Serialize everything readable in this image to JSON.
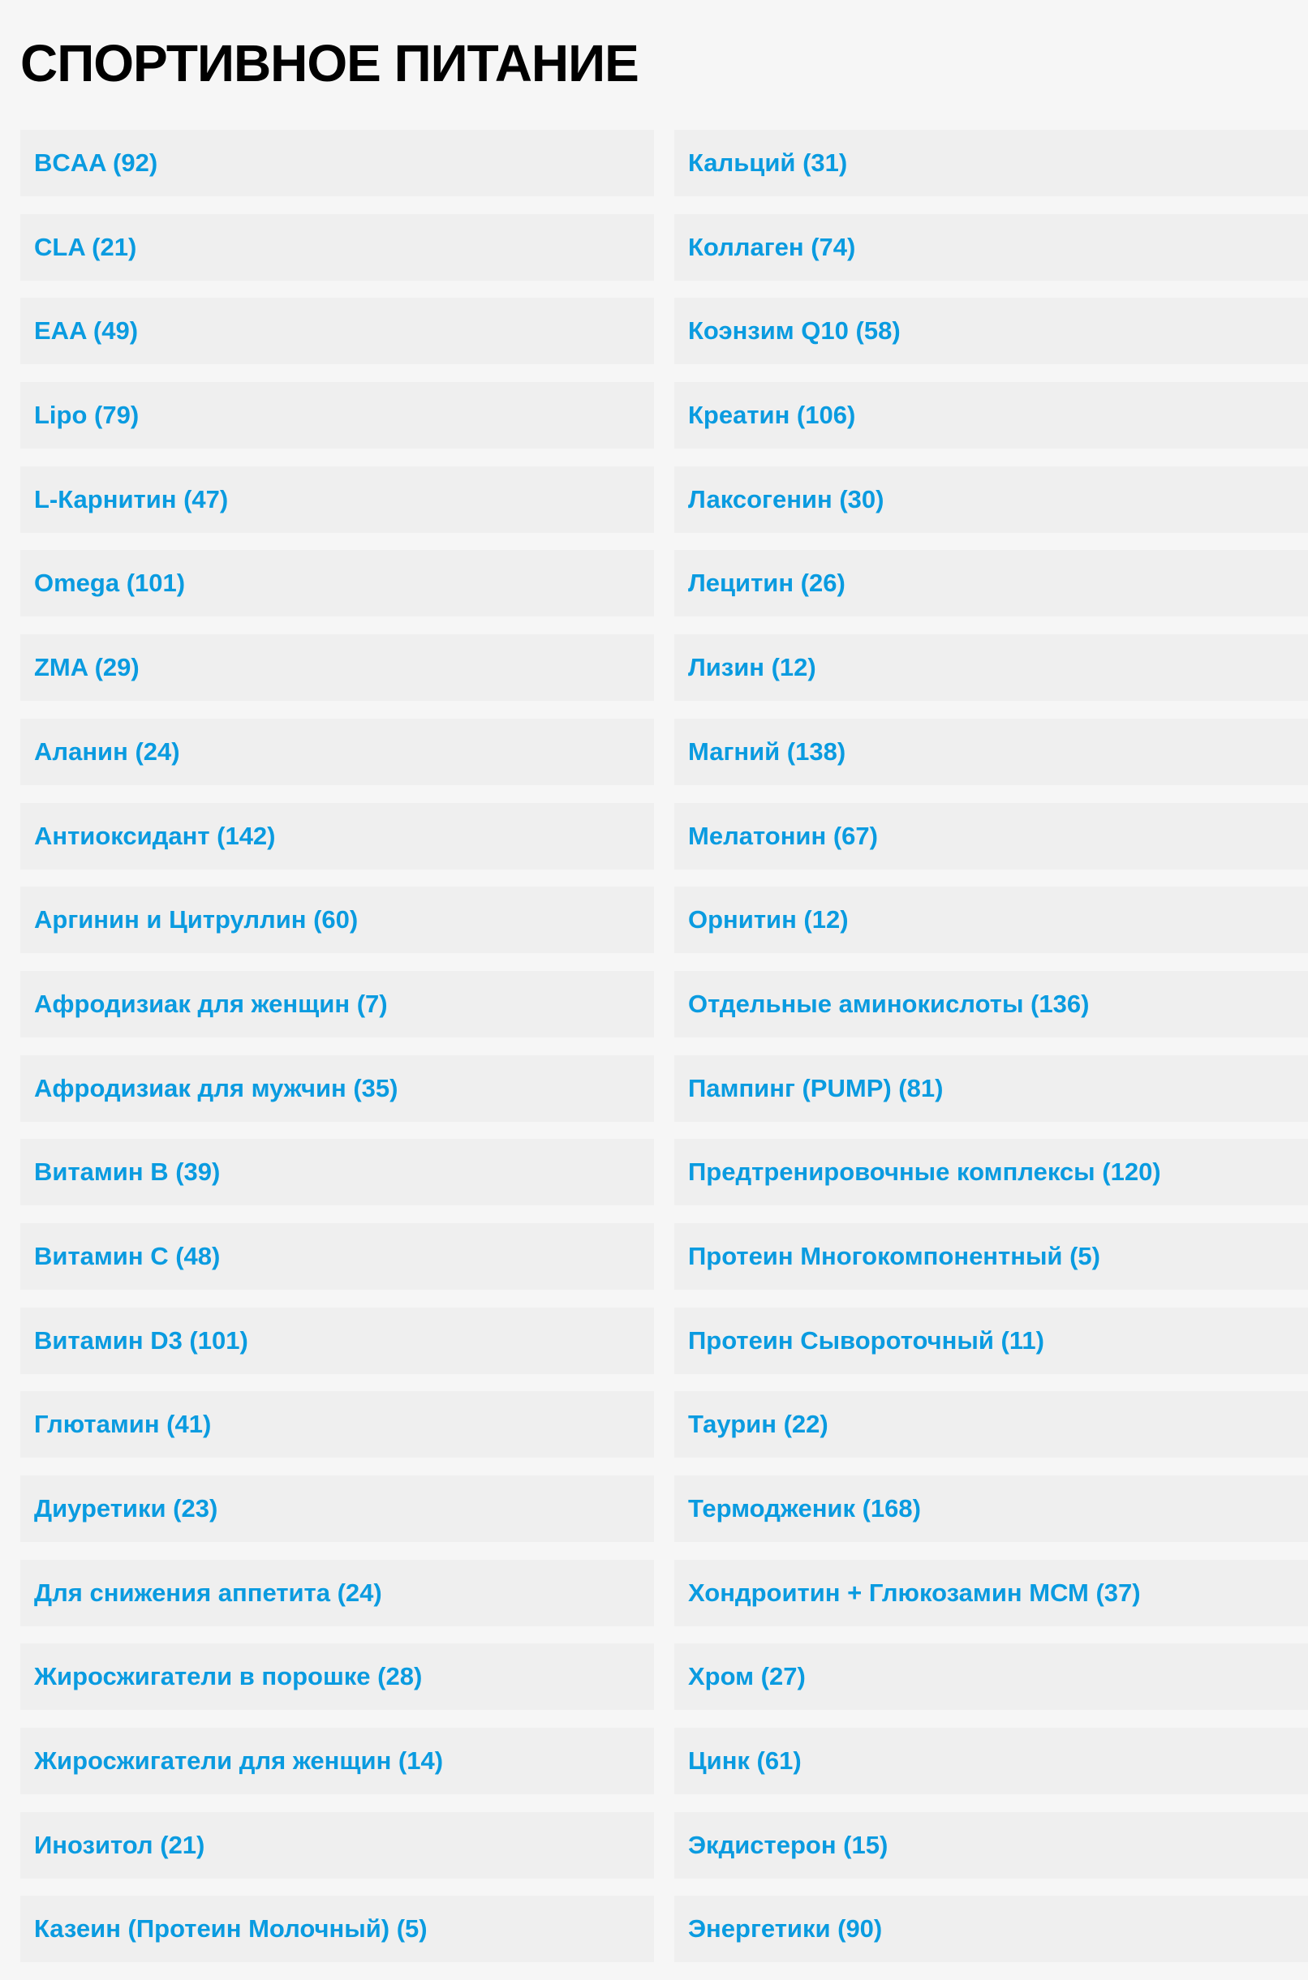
{
  "page_title": "СПОРТИВНОЕ ПИТАНИЕ",
  "link_color": "#0a9be0",
  "categories_left": [
    "BCAA (92)",
    "CLA (21)",
    "EAA (49)",
    "Lipo (79)",
    "L-Карнитин (47)",
    "Omega (101)",
    "ZMA (29)",
    "Аланин (24)",
    "Антиоксидант (142)",
    "Аргинин и Цитруллин (60)",
    "Афродизиак для женщин (7)",
    "Афродизиак для мужчин (35)",
    "Витамин B (39)",
    "Витамин C (48)",
    "Витамин D3 (101)",
    "Глютамин (41)",
    "Диуретики (23)",
    "Для снижения аппетита (24)",
    "Жиросжигатели в порошке (28)",
    "Жиросжигатели для женщин (14)",
    "Инозитол (21)",
    "Казеин (Протеин Молочный) (5)"
  ],
  "categories_right": [
    "Кальций (31)",
    "Коллаген (74)",
    "Коэнзим Q10 (58)",
    "Креатин (106)",
    "Лаксогенин (30)",
    "Лецитин (26)",
    "Лизин (12)",
    "Магний (138)",
    "Мелатонин (67)",
    "Орнитин (12)",
    "Отдельные аминокислоты (136)",
    "Пампинг (PUMP) (81)",
    "Предтренировочные комплексы (120)",
    "Протеин Многокомпонентный (5)",
    "Протеин Сывороточный (11)",
    "Таурин (22)",
    "Термодженик (168)",
    "Хондроитин + Глюкозамин МСМ (37)",
    "Хром (27)",
    "Цинк (61)",
    "Экдистерон (15)",
    "Энергетики (90)"
  ]
}
